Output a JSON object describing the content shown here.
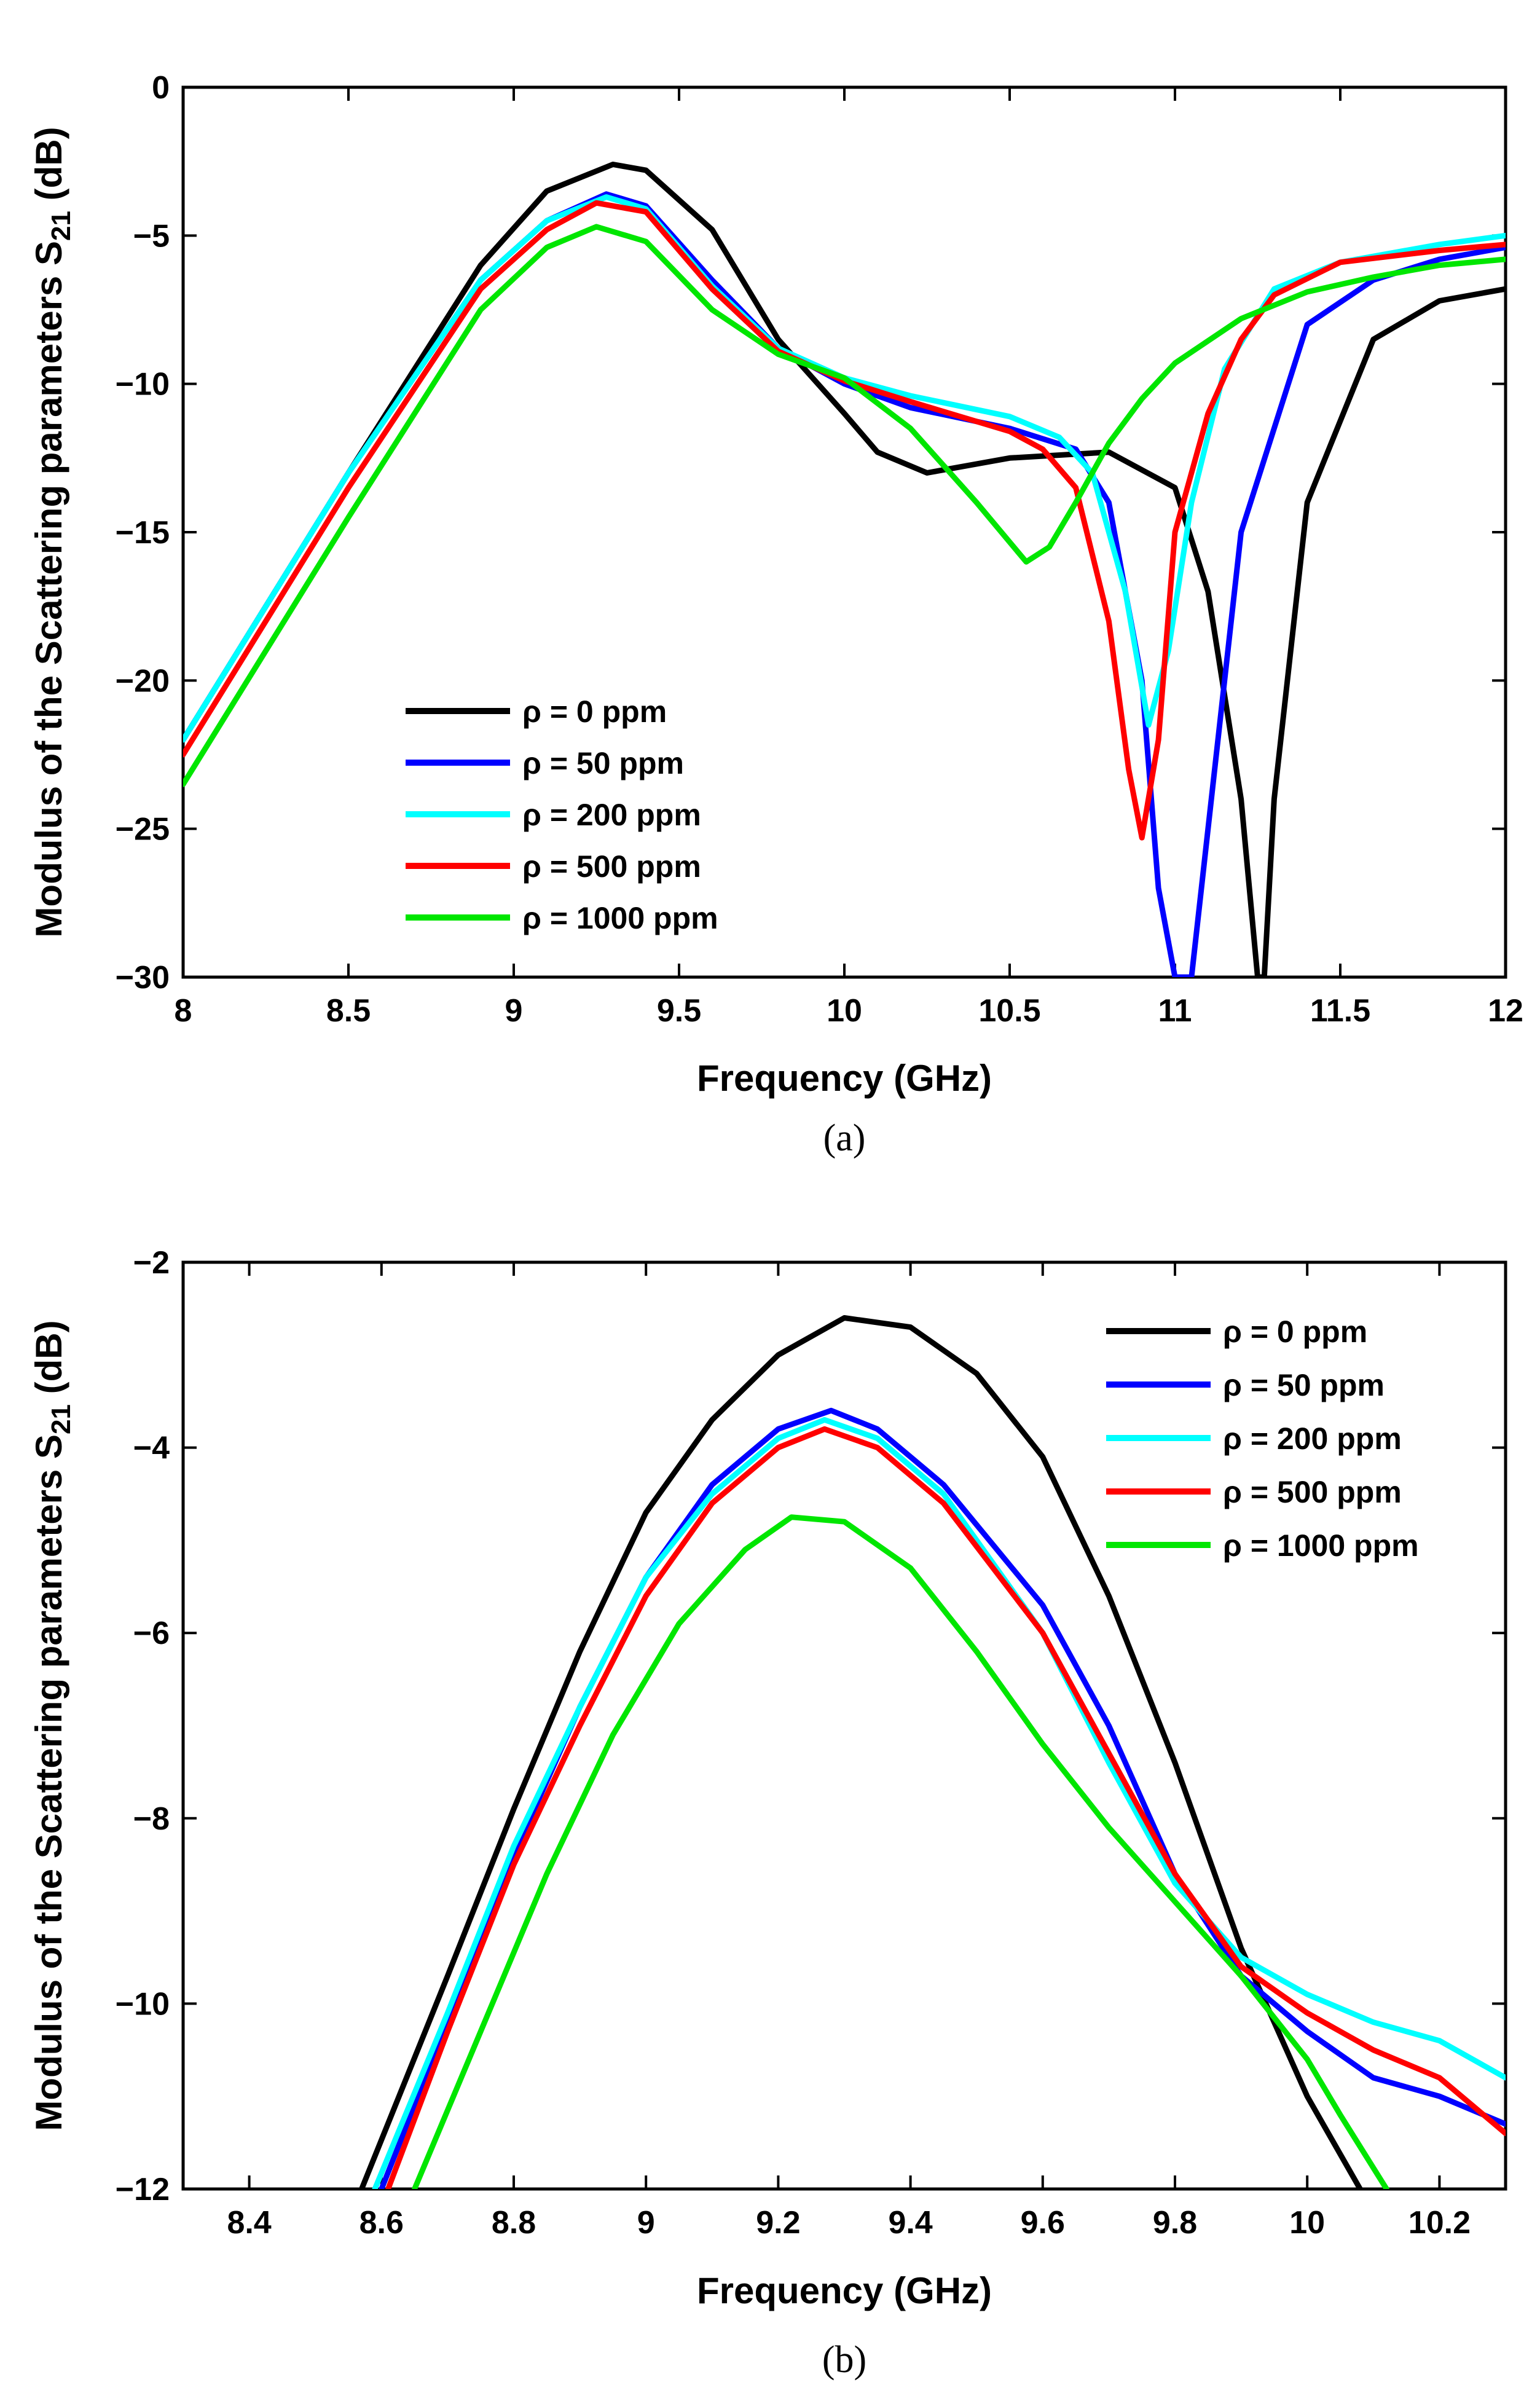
{
  "chart_data": [
    {
      "panel": "a",
      "type": "line",
      "caption": "(a)",
      "xlabel": "Frequency (GHz)",
      "ylabel": "Modulus of the Scattering parameters S 21 (dB)",
      "xlim": [
        8,
        12
      ],
      "ylim": [
        -30,
        0
      ],
      "xticks": [
        8,
        8.5,
        9,
        9.5,
        10,
        10.5,
        11,
        11.5,
        12
      ],
      "yticks": [
        0,
        -5,
        -10,
        -15,
        -20,
        -25,
        -30
      ],
      "legend_position": "lower-left",
      "series": [
        {
          "name": "ρ = 0 ppm",
          "color": "#000000",
          "x": [
            8.0,
            8.5,
            8.9,
            9.1,
            9.3,
            9.4,
            9.6,
            9.8,
            10.0,
            10.1,
            10.25,
            10.5,
            10.8,
            11.0,
            11.1,
            11.2,
            11.25,
            11.27,
            11.3,
            11.4,
            11.6,
            11.8,
            12.0
          ],
          "y": [
            -22,
            -13,
            -6,
            -3.5,
            -2.6,
            -2.8,
            -4.8,
            -8.5,
            -11,
            -12.3,
            -13.0,
            -12.5,
            -12.3,
            -13.5,
            -17,
            -24,
            -30,
            -30,
            -24,
            -14,
            -8.5,
            -7.2,
            -6.8
          ]
        },
        {
          "name": "ρ = 50 ppm",
          "color": "#0000ff",
          "x": [
            8.0,
            8.5,
            8.9,
            9.1,
            9.28,
            9.4,
            9.6,
            9.8,
            10.0,
            10.2,
            10.5,
            10.7,
            10.8,
            10.9,
            10.95,
            11.0,
            11.05,
            11.1,
            11.2,
            11.4,
            11.6,
            11.8,
            12.0
          ],
          "y": [
            -22,
            -13,
            -6.5,
            -4.5,
            -3.6,
            -4.0,
            -6.5,
            -8.8,
            -10.0,
            -10.8,
            -11.5,
            -12.2,
            -14,
            -20,
            -27,
            -30,
            -30,
            -25,
            -15,
            -8,
            -6.5,
            -5.8,
            -5.4
          ]
        },
        {
          "name": "ρ = 200 ppm",
          "color": "#00ffff",
          "x": [
            8.0,
            8.5,
            8.9,
            9.1,
            9.28,
            9.4,
            9.6,
            9.8,
            10.0,
            10.2,
            10.5,
            10.65,
            10.75,
            10.85,
            10.92,
            10.98,
            11.05,
            11.15,
            11.3,
            11.5,
            11.8,
            12.0
          ],
          "y": [
            -22,
            -13,
            -6.5,
            -4.5,
            -3.7,
            -4.1,
            -6.7,
            -8.8,
            -9.8,
            -10.4,
            -11.1,
            -11.8,
            -13,
            -17,
            -21.5,
            -19,
            -14,
            -9.5,
            -6.8,
            -5.9,
            -5.3,
            -5.0
          ]
        },
        {
          "name": "ρ = 500 ppm",
          "color": "#ff0000",
          "x": [
            8.0,
            8.5,
            8.9,
            9.1,
            9.25,
            9.4,
            9.6,
            9.8,
            10.0,
            10.2,
            10.5,
            10.6,
            10.7,
            10.8,
            10.86,
            10.9,
            10.95,
            11.0,
            11.1,
            11.2,
            11.3,
            11.5,
            11.8,
            12.0
          ],
          "y": [
            -22.5,
            -13.5,
            -6.8,
            -4.8,
            -3.9,
            -4.2,
            -6.8,
            -8.9,
            -9.9,
            -10.6,
            -11.6,
            -12.2,
            -13.5,
            -18,
            -23,
            -25.3,
            -22,
            -15,
            -11,
            -8.5,
            -7.0,
            -5.9,
            -5.5,
            -5.3
          ]
        },
        {
          "name": "ρ = 1000 ppm",
          "color": "#00e600",
          "x": [
            8.0,
            8.5,
            8.9,
            9.1,
            9.25,
            9.4,
            9.6,
            9.8,
            10.0,
            10.2,
            10.4,
            10.55,
            10.62,
            10.7,
            10.8,
            10.9,
            11.0,
            11.2,
            11.4,
            11.6,
            11.8,
            12.0
          ],
          "y": [
            -23.5,
            -14.5,
            -7.5,
            -5.4,
            -4.7,
            -5.2,
            -7.5,
            -9.0,
            -9.8,
            -11.5,
            -14,
            -16,
            -15.5,
            -14,
            -12,
            -10.5,
            -9.3,
            -7.8,
            -6.9,
            -6.4,
            -6.0,
            -5.8
          ]
        }
      ]
    },
    {
      "panel": "b",
      "type": "line",
      "caption": "(b)",
      "xlabel": "Frequency (GHz)",
      "ylabel": "Modulus of the Scattering parameters S 21 (dB)",
      "xlim": [
        8.3,
        10.3
      ],
      "ylim": [
        -12,
        -2
      ],
      "xticks": [
        8.4,
        8.6,
        8.8,
        9,
        9.2,
        9.4,
        9.6,
        9.8,
        10,
        10.2
      ],
      "yticks": [
        -2,
        -4,
        -6,
        -8,
        -10,
        -12
      ],
      "legend_position": "top-right",
      "series": [
        {
          "name": "ρ = 0 ppm",
          "color": "#000000",
          "x": [
            8.57,
            8.7,
            8.8,
            8.9,
            9.0,
            9.1,
            9.2,
            9.3,
            9.4,
            9.5,
            9.6,
            9.7,
            9.8,
            9.9,
            10.0,
            10.08
          ],
          "y": [
            -12,
            -9.7,
            -7.9,
            -6.2,
            -4.7,
            -3.7,
            -3.0,
            -2.6,
            -2.7,
            -3.2,
            -4.1,
            -5.6,
            -7.4,
            -9.4,
            -11.0,
            -12
          ]
        },
        {
          "name": "ρ = 50 ppm",
          "color": "#0000ff",
          "x": [
            8.6,
            8.7,
            8.8,
            8.9,
            9.0,
            9.1,
            9.2,
            9.28,
            9.35,
            9.45,
            9.6,
            9.7,
            9.8,
            9.9,
            10.0,
            10.1,
            10.2,
            10.3
          ],
          "y": [
            -12,
            -10.2,
            -8.4,
            -6.8,
            -5.4,
            -4.4,
            -3.8,
            -3.6,
            -3.8,
            -4.4,
            -5.7,
            -7.0,
            -8.6,
            -9.7,
            -10.3,
            -10.8,
            -11.0,
            -11.3
          ]
        },
        {
          "name": "ρ = 200 ppm",
          "color": "#00ffff",
          "x": [
            8.59,
            8.7,
            8.8,
            8.9,
            9.0,
            9.1,
            9.2,
            9.27,
            9.35,
            9.45,
            9.6,
            9.7,
            9.8,
            9.9,
            10.0,
            10.1,
            10.2,
            10.3
          ],
          "y": [
            -12,
            -10.1,
            -8.3,
            -6.8,
            -5.4,
            -4.5,
            -3.9,
            -3.7,
            -3.9,
            -4.5,
            -6.0,
            -7.4,
            -8.7,
            -9.5,
            -9.9,
            -10.2,
            -10.4,
            -10.8
          ]
        },
        {
          "name": "ρ = 500 ppm",
          "color": "#ff0000",
          "x": [
            8.61,
            8.7,
            8.8,
            8.9,
            9.0,
            9.1,
            9.2,
            9.27,
            9.35,
            9.45,
            9.6,
            9.7,
            9.8,
            9.9,
            10.0,
            10.1,
            10.2,
            10.3
          ],
          "y": [
            -12,
            -10.3,
            -8.5,
            -7.0,
            -5.6,
            -4.6,
            -4.0,
            -3.8,
            -4.0,
            -4.6,
            -6.0,
            -7.3,
            -8.6,
            -9.6,
            -10.1,
            -10.5,
            -10.8,
            -11.4
          ]
        },
        {
          "name": "ρ = 1000 ppm",
          "color": "#00e600",
          "x": [
            8.65,
            8.75,
            8.85,
            8.95,
            9.05,
            9.15,
            9.22,
            9.3,
            9.4,
            9.5,
            9.6,
            9.7,
            9.8,
            9.9,
            10.0,
            10.05,
            10.12
          ],
          "y": [
            -12,
            -10.3,
            -8.6,
            -7.1,
            -5.9,
            -5.1,
            -4.75,
            -4.8,
            -5.3,
            -6.2,
            -7.2,
            -8.1,
            -8.9,
            -9.7,
            -10.6,
            -11.2,
            -12
          ]
        }
      ]
    }
  ]
}
